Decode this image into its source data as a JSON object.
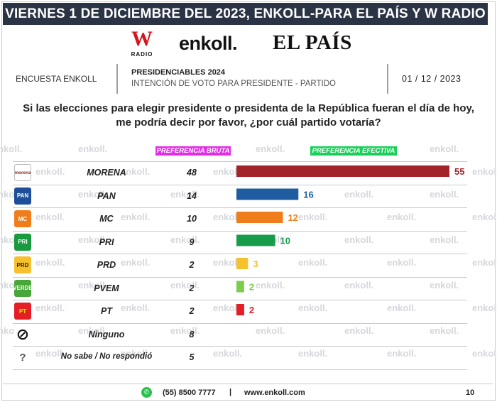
{
  "banner": "VIERNES 1 DE DICIEMBRE DEL 2023, ENKOLL-PARA EL PAÍS Y W RADIO",
  "logos": {
    "w_letter": "W",
    "w_sub": "RADIO",
    "enkoll": "enkoll.",
    "elpais": "EL PAÍS"
  },
  "survey_label": "ENCUESTA ENKOLL",
  "study_title": "PRESIDENCIABLES 2024",
  "study_subtitle": "INTENCIÓN DE VOTO PARA PRESIDENTE - PARTIDO",
  "date": "01 / 12 / 2023",
  "question": "Si las elecciones para elegir presidente o presidenta de la República fueran el día de hoy, me podría decir por favor, ¿por cuál partido votaría?",
  "watermark": "enkoll.",
  "colors": {
    "banner": "#2b3445",
    "bruta_header": "#e22ee6",
    "efectiva_header": "#19d15a"
  },
  "chart_data": {
    "type": "bar",
    "series_headers": [
      "PREFERENCIA BRUTA",
      "PREFERENCIA EFECTIVA"
    ],
    "categories": [
      "MORENA",
      "PAN",
      "MC",
      "PRI",
      "PRD",
      "PVEM",
      "PT",
      "Ninguno",
      "No sabe / No respondió"
    ],
    "series": [
      {
        "name": "PREFERENCIA BRUTA",
        "values": [
          48,
          14,
          10,
          9,
          2,
          2,
          2,
          8,
          5
        ]
      },
      {
        "name": "PREFERENCIA EFECTIVA",
        "values": [
          55,
          16,
          12,
          10,
          3,
          2,
          2,
          null,
          null
        ],
        "colors": [
          "#a3232b",
          "#1f5da0",
          "#f07d1c",
          "#179c4a",
          "#f7c12d",
          "#7ccd4c",
          "#e51d24"
        ]
      }
    ],
    "icons": [
      {
        "name": "morena-icon",
        "text": "morena",
        "bg": "#ffffff",
        "fg": "#8b1c1c"
      },
      {
        "name": "pan-icon",
        "text": "PAN",
        "bg": "#1c4e9a",
        "fg": "#ffffff"
      },
      {
        "name": "mc-icon",
        "text": "MC",
        "bg": "#f07d1c",
        "fg": "#ffffff"
      },
      {
        "name": "pri-icon",
        "text": "PRI",
        "bg": "#1a9a3e",
        "fg": "#ffffff"
      },
      {
        "name": "prd-icon",
        "text": "PRD",
        "bg": "#f7c12d",
        "fg": "#222222"
      },
      {
        "name": "pvem-icon",
        "text": "VERDE",
        "bg": "#49a73a",
        "fg": "#ffffff"
      },
      {
        "name": "pt-icon",
        "text": "PT",
        "bg": "#e51d24",
        "fg": "#ffe200"
      },
      {
        "name": "none-icon",
        "text": "⊘",
        "bg": "#ffffff",
        "fg": "#111111"
      },
      {
        "name": "unknown-icon",
        "text": "?",
        "bg": "#ffffff",
        "fg": "#555555"
      }
    ]
  },
  "footer": {
    "phone": "(55) 8500 7777",
    "separator": "|",
    "web": "www.enkoll.com",
    "page": "10"
  }
}
